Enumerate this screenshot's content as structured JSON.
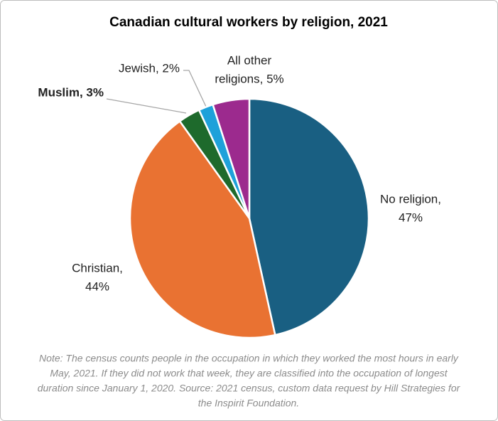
{
  "chart_data": {
    "type": "pie",
    "title": "Canadian cultural workers by religion, 2021",
    "values": [
      47,
      44,
      3,
      2,
      5
    ],
    "value_labels": [
      [
        "No religion,",
        "47%"
      ],
      [
        "Christian,",
        "44%"
      ],
      [
        "Muslim, 3%"
      ],
      [
        "Jewish, 2%"
      ],
      [
        "All other",
        "religions, 5%"
      ]
    ],
    "colors": [
      "#195f82",
      "#e97232",
      "#1e6a2c",
      "#1ea1da",
      "#9c2a8e"
    ],
    "note": [
      "Note: The census counts people in the occupation in which they worked the most hours in early",
      "May, 2021. If they did not work that week, they are classified into the occupation of longest",
      "duration since January 1, 2020. Source: 2021 census, custom data request by Hill Strategies for",
      "the Inspirit Foundation."
    ]
  }
}
